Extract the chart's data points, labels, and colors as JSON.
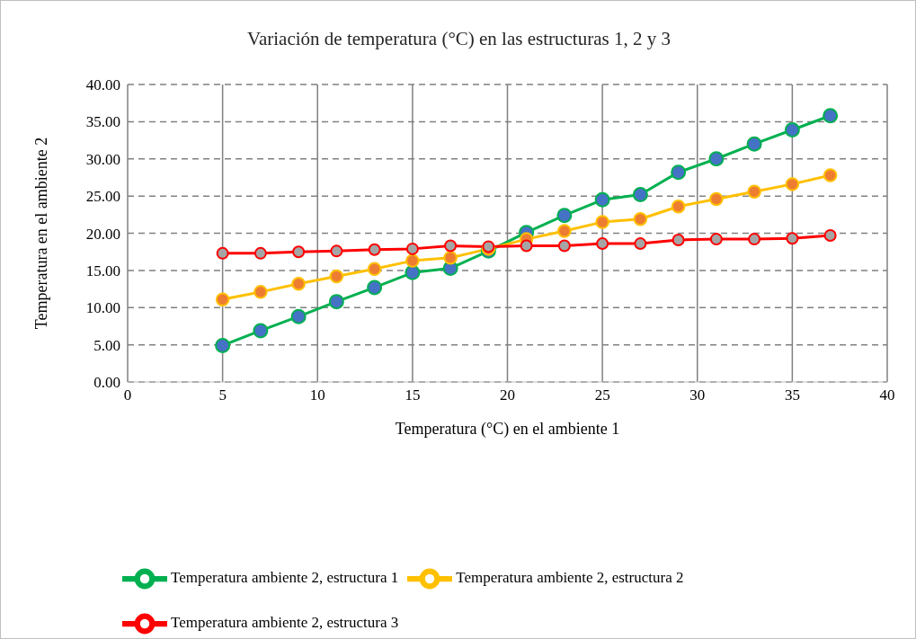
{
  "chart_data": {
    "type": "line",
    "title": "Variación de temperatura (°C) en las estructuras 1, 2 y 3",
    "xlabel": "Temperatura (°C) en el ambiente 1",
    "ylabel": "Temperatura en el ambiente 2",
    "x": [
      5,
      7,
      9,
      11,
      13,
      15,
      17,
      19,
      21,
      23,
      25,
      27,
      29,
      31,
      33,
      35,
      37
    ],
    "series": [
      {
        "name": "Temperatura ambiente 2, estructura 1",
        "color": "#00b050",
        "colors": [
          "#4472c4",
          "#4472c4",
          "#4472c4",
          "#4472c4",
          "#4472c4",
          "#4472c4",
          "#4472c4",
          "#4472c4",
          "#4472c4",
          "#4472c4",
          "#4472c4",
          "#4472c4",
          "#4472c4",
          "#4472c4",
          "#4472c4",
          "#4472c4",
          "#4472c4"
        ],
        "values": [
          4.9,
          6.9,
          8.8,
          10.8,
          12.7,
          14.7,
          15.3,
          17.6,
          20.1,
          22.4,
          24.5,
          25.2,
          28.2,
          30.0,
          32.0,
          33.9,
          35.8
        ]
      },
      {
        "name": "Temperatura ambiente 2, estructura 2",
        "color": "#ffc000",
        "colors": [
          "#ed7d31",
          "#ed7d31",
          "#ed7d31",
          "#ed7d31",
          "#ed7d31",
          "#ed7d31",
          "#ed7d31",
          "#ed7d31",
          "#ed7d31",
          "#ed7d31",
          "#ed7d31",
          "#ed7d31",
          "#ed7d31",
          "#ed7d31",
          "#ed7d31",
          "#ed7d31",
          "#ed7d31"
        ],
        "values": [
          11.1,
          12.1,
          13.2,
          14.2,
          15.2,
          16.3,
          16.7,
          17.9,
          19.2,
          20.3,
          21.5,
          21.9,
          23.6,
          24.6,
          25.6,
          26.6,
          27.8
        ]
      },
      {
        "name": "Temperatura ambiente 2, estructura 3",
        "color": "#ff0000",
        "colors": [
          "#a5a5a5",
          "#a5a5a5",
          "#a5a5a5",
          "#a5a5a5",
          "#a5a5a5",
          "#a5a5a5",
          "#a5a5a5",
          "#a5a5a5",
          "#a5a5a5",
          "#a5a5a5",
          "#a5a5a5",
          "#a5a5a5",
          "#a5a5a5",
          "#a5a5a5",
          "#a5a5a5",
          "#a5a5a5",
          "#a5a5a5"
        ],
        "values": [
          17.3,
          17.3,
          17.5,
          17.6,
          17.8,
          17.9,
          18.3,
          18.2,
          18.3,
          18.3,
          18.6,
          18.6,
          19.1,
          19.2,
          19.2,
          19.3,
          19.7
        ]
      }
    ],
    "xlim": [
      0,
      40
    ],
    "xticks": [
      0,
      5,
      10,
      15,
      20,
      25,
      30,
      35,
      40
    ],
    "ylim": [
      0,
      40
    ],
    "yticks": [
      {
        "value": 0,
        "label": "0.00"
      },
      {
        "value": 5,
        "label": "5.00"
      },
      {
        "value": 10,
        "label": "10.00"
      },
      {
        "value": 15,
        "label": "15.00"
      },
      {
        "value": 20,
        "label": "20.00"
      },
      {
        "value": 25,
        "label": "25.00"
      },
      {
        "value": 30,
        "label": "30.00"
      },
      {
        "value": 35,
        "label": "35.00"
      },
      {
        "value": 40,
        "label": "40.00"
      }
    ],
    "grid": true,
    "legend": "bottom",
    "marker": "circle",
    "line_style": "solid"
  }
}
